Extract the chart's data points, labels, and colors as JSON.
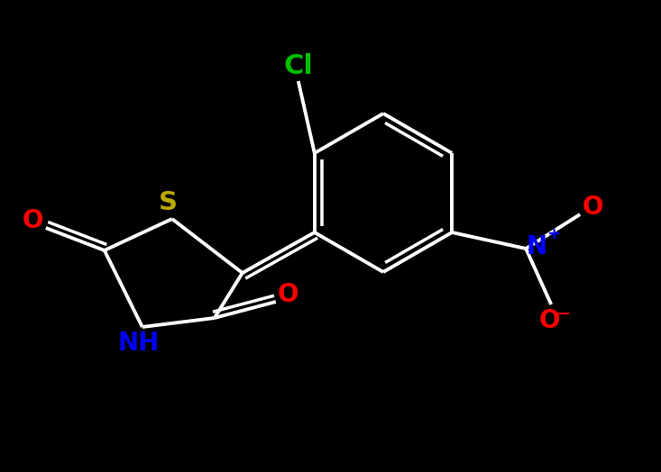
{
  "background_color": "#000000",
  "bond_color": "#ffffff",
  "line_width": 2.8,
  "atoms": {
    "Cl": {
      "color": "#00bb00",
      "fontsize": 20
    },
    "S": {
      "color": "#bbaa00",
      "fontsize": 20
    },
    "N": {
      "color": "#0000ff",
      "fontsize": 20
    },
    "NH": {
      "color": "#0000ff",
      "fontsize": 20
    },
    "O": {
      "color": "#ff0000",
      "fontsize": 20
    },
    "Nplus": {
      "color": "#0000ff",
      "fontsize": 14
    },
    "Ominus": {
      "color": "#ff0000",
      "fontsize": 14
    }
  },
  "fig_width": 7.33,
  "fig_height": 5.24,
  "dpi": 100
}
